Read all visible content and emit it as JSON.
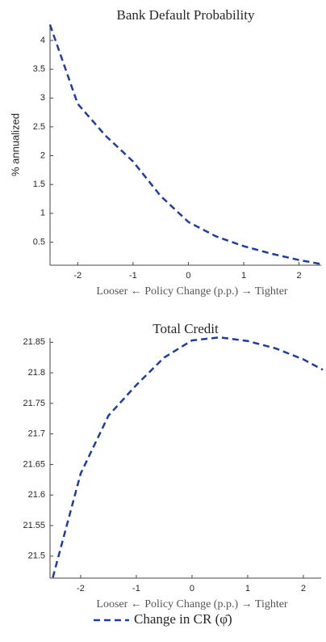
{
  "chart_data": [
    {
      "type": "line",
      "title": "Bank Default Probability",
      "y_label": "% annualized",
      "x_label": "Looser ← Policy Change (p.p.) → Tighter",
      "x": [
        -2.5,
        -2,
        -1.5,
        -1,
        -0.5,
        0,
        0.5,
        1,
        1.5,
        2,
        2.4
      ],
      "series": [
        {
          "name": "Change in CR (φ̄)",
          "color": "#1f3d99",
          "values": [
            4.27,
            2.9,
            2.35,
            1.9,
            1.3,
            0.85,
            0.6,
            0.43,
            0.3,
            0.19,
            0.12
          ]
        }
      ],
      "xlim": [
        -2.5,
        2.4
      ],
      "ylim": [
        0.1,
        4.28
      ],
      "xticks": [
        -2,
        -1,
        0,
        1,
        2
      ],
      "yticks": [
        0.5,
        1,
        1.5,
        2,
        2.5,
        3,
        3.5,
        4
      ]
    },
    {
      "type": "line",
      "title": "Total Credit",
      "x_label": "Looser ← Policy Change (p.p.) → Tighter",
      "x": [
        -2.5,
        -2,
        -1.5,
        -1,
        -0.5,
        0,
        0.5,
        1,
        1.5,
        2,
        2.35
      ],
      "series": [
        {
          "name": "Change in CR (φ̄)",
          "color": "#1f3d99",
          "values": [
            21.465,
            21.635,
            21.73,
            21.78,
            21.825,
            21.853,
            21.858,
            21.852,
            21.84,
            21.822,
            21.805
          ]
        }
      ],
      "xlim": [
        -2.55,
        2.32
      ],
      "ylim": [
        21.464,
        21.857
      ],
      "xticks": [
        -2,
        -1,
        0,
        1,
        2
      ],
      "yticks": [
        21.5,
        21.55,
        21.6,
        21.65,
        21.7,
        21.75,
        21.8,
        21.85
      ]
    }
  ]
}
